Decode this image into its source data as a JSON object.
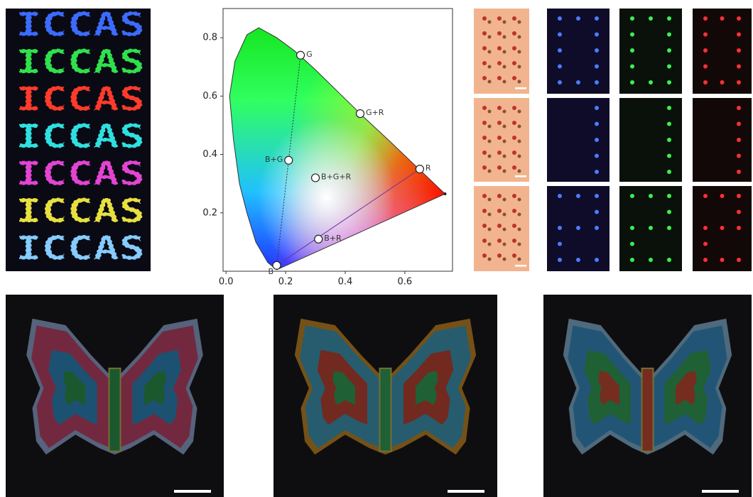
{
  "panel_a": {
    "word": "ICCAS",
    "labels": [
      "B",
      "G",
      "R",
      "B+G",
      "B+R",
      "G+R",
      "B+G+R"
    ]
  },
  "chart_data": {
    "type": "scatter",
    "x": [
      0.25,
      0.45,
      0.65,
      0.21,
      0.3,
      0.31,
      0.17
    ],
    "y": [
      0.74,
      0.54,
      0.35,
      0.38,
      0.32,
      0.11,
      0.02
    ],
    "point_labels": [
      "G",
      "G+R",
      "R",
      "B+G",
      "B+G+R",
      "B+R",
      "B"
    ],
    "xlim": [
      -0.01,
      0.76
    ],
    "ylim": [
      0,
      0.9
    ],
    "xticks": [
      {
        "value": 0,
        "label": "0.0"
      },
      0.2,
      0.4,
      0.6
    ],
    "yticks": [
      0.2,
      0.4,
      0.6,
      0.8
    ]
  }
}
